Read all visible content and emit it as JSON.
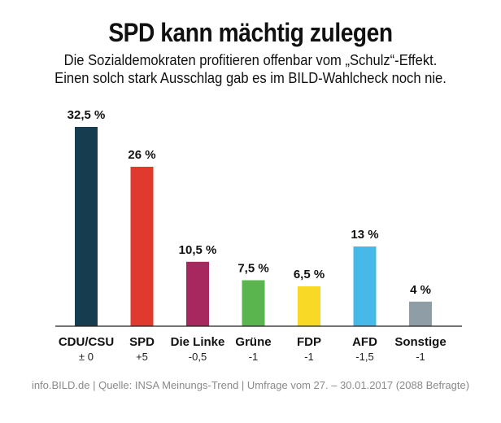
{
  "header": {
    "title": "SPD kann mächtig zulegen",
    "subtitle_line1": "Die Sozialdemokraten profitieren offenbar vom „Schulz“-Effekt.",
    "subtitle_line2": "Einen solch stark Ausschlag gab es im BILD-Wahlcheck noch nie."
  },
  "chart_data": {
    "type": "bar",
    "title": "SPD kann mächtig zulegen",
    "categories": [
      "CDU/CSU",
      "SPD",
      "Die Linke",
      "Grüne",
      "FDP",
      "AFD",
      "Sonstige"
    ],
    "values": [
      32.5,
      26,
      10.5,
      7.5,
      6.5,
      13,
      4
    ],
    "value_labels": [
      "32,5 %",
      "26 %",
      "10,5 %",
      "7,5 %",
      "6,5 %",
      "13 %",
      "4 %"
    ],
    "changes": [
      "± 0",
      "+5",
      "-0,5",
      "-1",
      "-1",
      "-1,5",
      "-1"
    ],
    "colors": [
      "#163c4f",
      "#e03a2f",
      "#a6285e",
      "#5ab54f",
      "#f7d926",
      "#47b9e8",
      "#8f9ea6"
    ],
    "xlabel": "",
    "ylabel": "",
    "ylim": [
      0,
      32.5
    ],
    "grid": false,
    "legend": "none"
  },
  "footer": {
    "source": "info.BILD.de | Quelle: INSA Meinungs-Trend | Umfrage vom 27. – 30.01.2017 (2088 Befragte)"
  }
}
